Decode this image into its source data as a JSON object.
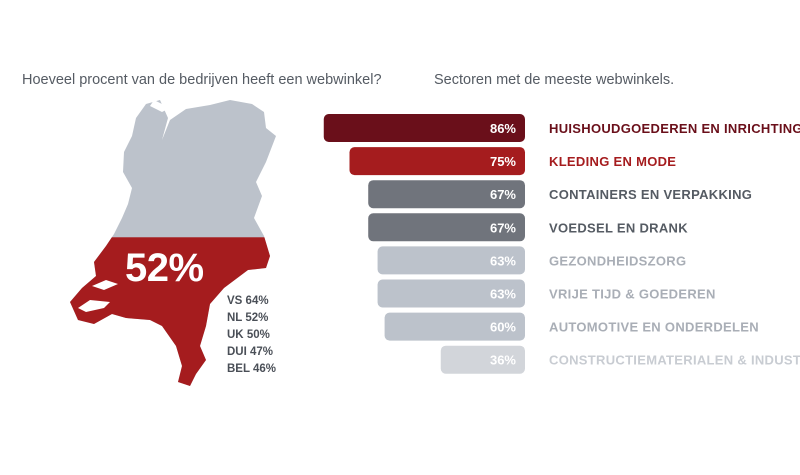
{
  "left_title": "Hoeveel procent van de bedrijven heeft een webwinkel?",
  "right_title": "Sectoren met de meeste webwinkels.",
  "map": {
    "headline_value": "52%",
    "fill_fraction": 0.52,
    "colors": {
      "filled": "#a51c1e",
      "empty": "#bcc2cb"
    }
  },
  "countries": [
    {
      "code": "VS",
      "value": "64%"
    },
    {
      "code": "NL",
      "value": "52%"
    },
    {
      "code": "UK",
      "value": "50%"
    },
    {
      "code": "DUI",
      "value": "47%"
    },
    {
      "code": "BEL",
      "value": "46%"
    }
  ],
  "chart_data": {
    "type": "bar",
    "title": "Sectoren met de meeste webwinkels.",
    "categories": [
      "HUISHOUDGOEDEREN EN INRICHTING",
      "KLEDING EN MODE",
      "CONTAINERS EN VERPAKKING",
      "VOEDSEL EN DRANK",
      "GEZONDHEIDSZORG",
      "VRIJE TIJD & GOEDEREN",
      "AUTOMOTIVE EN ONDERDELEN",
      "CONSTRUCTIEMATERIALEN & INDUSTRIËN"
    ],
    "values": [
      86,
      75,
      67,
      67,
      63,
      63,
      60,
      36
    ],
    "value_labels": [
      "86%",
      "75%",
      "67%",
      "67%",
      "63%",
      "63%",
      "60%",
      "36%"
    ],
    "bar_colors": [
      "#6a0f1a",
      "#a51c1e",
      "#70747c",
      "#70747c",
      "#bcc2cb",
      "#bcc2cb",
      "#bcc2cb",
      "#d2d5da"
    ],
    "label_colors": [
      "#6a0f1a",
      "#a51c1e",
      "#555b63",
      "#555b63",
      "#a9aeb6",
      "#a9aeb6",
      "#a9aeb6",
      "#c8ccd2"
    ],
    "orientation": "horizontal",
    "alignment": "right-aligned",
    "ylim": [
      0,
      100
    ],
    "grid": false
  }
}
